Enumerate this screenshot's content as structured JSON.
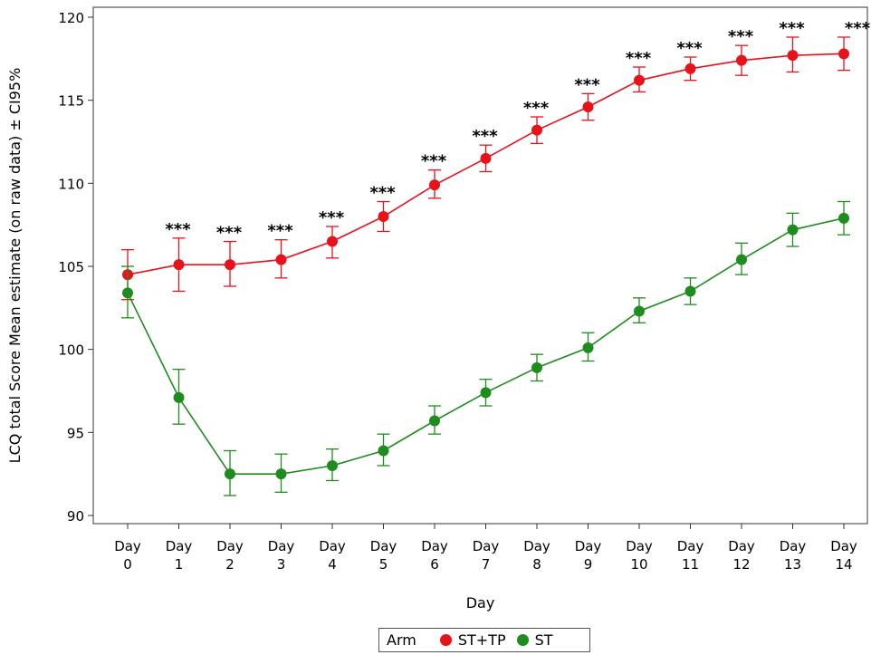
{
  "chart_data": {
    "type": "line",
    "xlabel": "Day",
    "ylabel": "LCQ total Score Mean estimate (on raw data) ± CI95%",
    "ylim": [
      90,
      120
    ],
    "yticks": [
      "90",
      "95",
      "100",
      "105",
      "110",
      "115",
      "120"
    ],
    "categories": [
      "Day 0",
      "Day 1",
      "Day 2",
      "Day 3",
      "Day 4",
      "Day 5",
      "Day 6",
      "Day 7",
      "Day 8",
      "Day 9",
      "Day 10",
      "Day 11",
      "Day 12",
      "Day 13",
      "Day 14"
    ],
    "significance": [
      "",
      "***",
      "***",
      "***",
      "***",
      "***",
      "***",
      "***",
      "***",
      "***",
      "***",
      "***",
      "***",
      "***",
      "***"
    ],
    "legend_title": "Arm",
    "legend_position": "bottom",
    "grid": false,
    "series": [
      {
        "name": "ST+TP",
        "color": "#e8121b",
        "values": [
          104.5,
          105.1,
          105.1,
          105.4,
          106.5,
          108.0,
          109.9,
          111.5,
          113.2,
          114.6,
          116.2,
          116.9,
          117.4,
          117.7,
          117.8
        ],
        "lower": [
          103.0,
          103.5,
          103.8,
          104.3,
          105.5,
          107.1,
          109.1,
          110.7,
          112.4,
          113.8,
          115.5,
          116.2,
          116.5,
          116.7,
          116.8
        ],
        "upper": [
          106.0,
          106.7,
          106.5,
          106.6,
          107.4,
          108.9,
          110.8,
          112.3,
          114.0,
          115.4,
          117.0,
          117.6,
          118.3,
          118.8,
          118.8
        ]
      },
      {
        "name": "ST",
        "color": "#1e8c1e",
        "values": [
          103.4,
          97.1,
          92.5,
          92.5,
          93.0,
          93.9,
          95.7,
          97.4,
          98.9,
          100.1,
          102.3,
          103.5,
          105.4,
          107.2,
          107.9
        ],
        "lower": [
          101.9,
          95.5,
          91.2,
          91.4,
          92.1,
          93.0,
          94.9,
          96.6,
          98.1,
          99.3,
          101.6,
          102.7,
          104.5,
          106.2,
          106.9
        ],
        "upper": [
          105.0,
          98.8,
          93.9,
          93.7,
          94.0,
          94.9,
          96.6,
          98.2,
          99.7,
          101.0,
          103.1,
          104.3,
          106.4,
          108.2,
          108.9
        ]
      }
    ]
  }
}
